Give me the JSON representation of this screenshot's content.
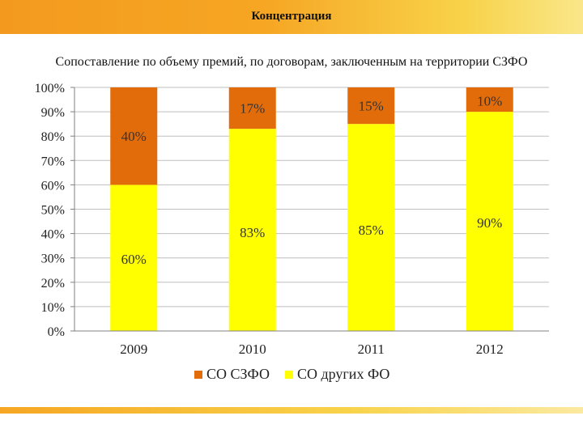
{
  "header": {
    "title": "Концентрация"
  },
  "subtitle": "Сопоставление по объему премий, по договорам, заключенным на территории СЗФО",
  "colors": {
    "series1": "#e36c0a",
    "series2": "#ffff00",
    "grid": "#bfbfbf",
    "axis": "#808080"
  },
  "chart_data": {
    "type": "bar",
    "stacked": true,
    "title": "Сопоставление по объему премий, по договорам, заключенным на территории СЗФО",
    "categories": [
      "2009",
      "2010",
      "2011",
      "2012"
    ],
    "series": [
      {
        "name": "СО СЗФО",
        "values": [
          40,
          17,
          15,
          10
        ],
        "labels": [
          "40%",
          "17%",
          "15%",
          "10%"
        ]
      },
      {
        "name": "СО других ФО",
        "values": [
          60,
          83,
          85,
          90
        ],
        "labels": [
          "60%",
          "83%",
          "85%",
          "90%"
        ]
      }
    ],
    "stack_order": [
      "СО других ФО",
      "СО СЗФО"
    ],
    "ylim": [
      0,
      100
    ],
    "yticks": [
      "0%",
      "10%",
      "20%",
      "30%",
      "40%",
      "50%",
      "60%",
      "70%",
      "80%",
      "90%",
      "100%"
    ],
    "xlabel": "",
    "ylabel": "",
    "grid": true,
    "legend": "bottom"
  }
}
